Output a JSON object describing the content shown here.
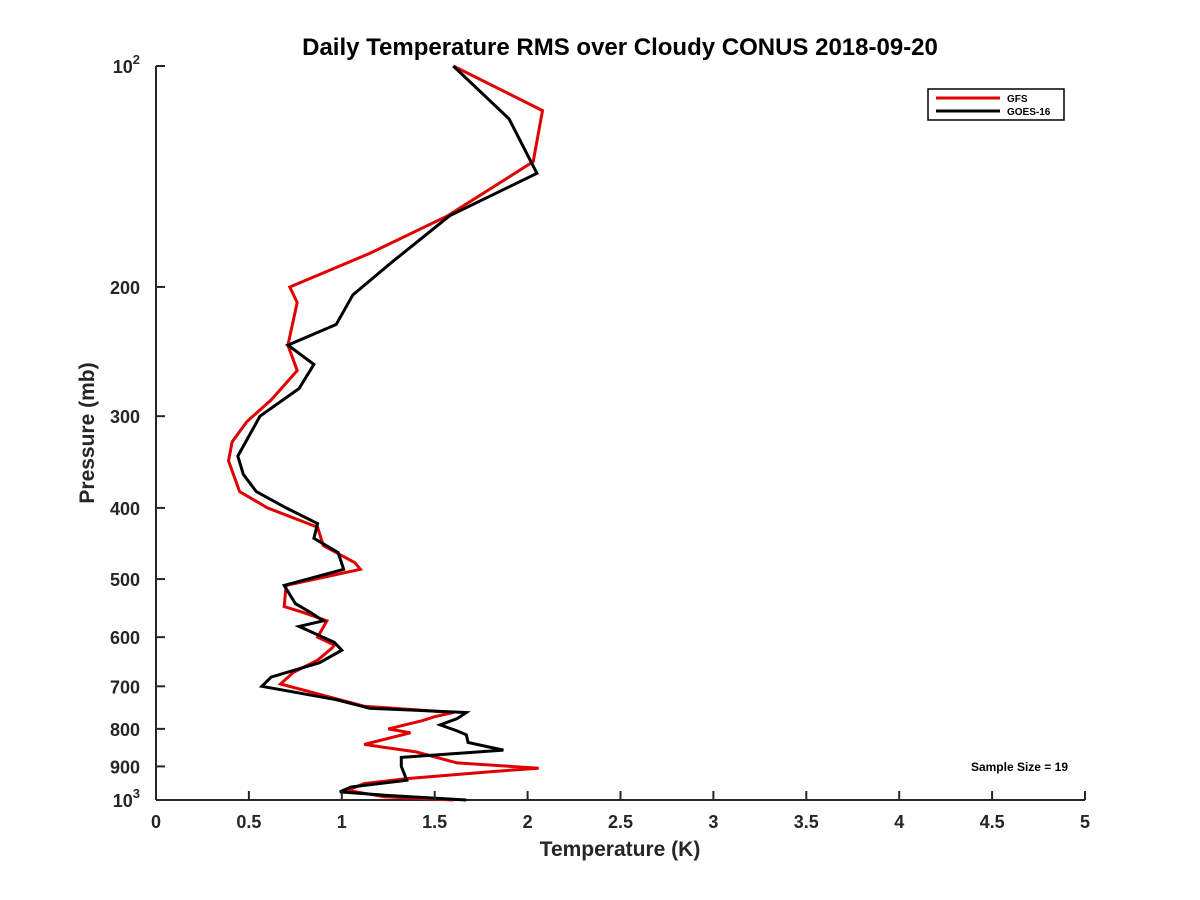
{
  "chart_data": {
    "type": "line",
    "title": "Daily Temperature RMS over Cloudy CONUS 2018-09-20",
    "xlabel": "Temperature (K)",
    "ylabel": "Pressure (mb)",
    "xlim": [
      0,
      5
    ],
    "ylim": [
      100,
      1000
    ],
    "y_scale": "log",
    "y_reversed": true,
    "grid": false,
    "legend_position": "top-right",
    "x_ticks": [
      "0",
      "0.5",
      "1",
      "1.5",
      "2",
      "2.5",
      "3",
      "3.5",
      "4",
      "4.5",
      "5"
    ],
    "y_ticks": [
      {
        "value": 100,
        "base": "10",
        "exp": "2"
      },
      {
        "value": 200,
        "label": "200"
      },
      {
        "value": 300,
        "label": "300"
      },
      {
        "value": 400,
        "label": "400"
      },
      {
        "value": 500,
        "label": "500"
      },
      {
        "value": 600,
        "label": "600"
      },
      {
        "value": 700,
        "label": "700"
      },
      {
        "value": 800,
        "label": "800"
      },
      {
        "value": 900,
        "label": "900"
      },
      {
        "value": 1000,
        "base": "10",
        "exp": "3"
      }
    ],
    "annotation": "Sample Size = 19",
    "series": [
      {
        "name": "GFS",
        "color": "#e00000",
        "points": [
          [
            1.6,
            100
          ],
          [
            2.08,
            115
          ],
          [
            2.03,
            135
          ],
          [
            1.57,
            160
          ],
          [
            1.15,
            180
          ],
          [
            0.72,
            200
          ],
          [
            0.76,
            210
          ],
          [
            0.71,
            240
          ],
          [
            0.76,
            260
          ],
          [
            0.62,
            285
          ],
          [
            0.49,
            305
          ],
          [
            0.41,
            325
          ],
          [
            0.39,
            345
          ],
          [
            0.45,
            380
          ],
          [
            0.6,
            400
          ],
          [
            0.87,
            425
          ],
          [
            0.9,
            450
          ],
          [
            1.07,
            475
          ],
          [
            1.1,
            485
          ],
          [
            0.7,
            510
          ],
          [
            0.69,
            545
          ],
          [
            0.79,
            555
          ],
          [
            0.92,
            570
          ],
          [
            0.87,
            600
          ],
          [
            0.96,
            615
          ],
          [
            0.95,
            620
          ],
          [
            0.87,
            645
          ],
          [
            0.74,
            670
          ],
          [
            0.67,
            695
          ],
          [
            0.9,
            720
          ],
          [
            1.12,
            745
          ],
          [
            1.6,
            760
          ],
          [
            1.5,
            770
          ],
          [
            1.43,
            780
          ],
          [
            1.25,
            800
          ],
          [
            1.37,
            810
          ],
          [
            1.12,
            840
          ],
          [
            1.4,
            860
          ],
          [
            1.62,
            890
          ],
          [
            2.06,
            905
          ],
          [
            1.8,
            915
          ],
          [
            1.35,
            935
          ],
          [
            1.12,
            950
          ],
          [
            1.03,
            970
          ],
          [
            1.23,
            990
          ],
          [
            1.6,
            1000
          ]
        ]
      },
      {
        "name": "GOES-16",
        "color": "#000000",
        "points": [
          [
            1.6,
            100
          ],
          [
            1.9,
            118
          ],
          [
            2.05,
            140
          ],
          [
            1.58,
            160
          ],
          [
            1.27,
            185
          ],
          [
            1.06,
            205
          ],
          [
            0.97,
            225
          ],
          [
            0.71,
            240
          ],
          [
            0.85,
            255
          ],
          [
            0.77,
            275
          ],
          [
            0.56,
            300
          ],
          [
            0.44,
            340
          ],
          [
            0.47,
            360
          ],
          [
            0.54,
            380
          ],
          [
            0.7,
            400
          ],
          [
            0.87,
            420
          ],
          [
            0.85,
            440
          ],
          [
            0.98,
            460
          ],
          [
            1.01,
            485
          ],
          [
            0.69,
            510
          ],
          [
            0.75,
            540
          ],
          [
            0.83,
            555
          ],
          [
            0.9,
            570
          ],
          [
            0.77,
            580
          ],
          [
            0.96,
            610
          ],
          [
            1.0,
            625
          ],
          [
            0.88,
            650
          ],
          [
            0.62,
            680
          ],
          [
            0.57,
            700
          ],
          [
            0.97,
            730
          ],
          [
            1.15,
            750
          ],
          [
            1.67,
            760
          ],
          [
            1.62,
            775
          ],
          [
            1.53,
            790
          ],
          [
            1.62,
            805
          ],
          [
            1.67,
            815
          ],
          [
            1.68,
            835
          ],
          [
            1.87,
            855
          ],
          [
            1.32,
            875
          ],
          [
            1.32,
            900
          ],
          [
            1.35,
            940
          ],
          [
            1.05,
            960
          ],
          [
            0.99,
            975
          ],
          [
            1.23,
            985
          ],
          [
            1.67,
            1000
          ]
        ]
      }
    ]
  }
}
